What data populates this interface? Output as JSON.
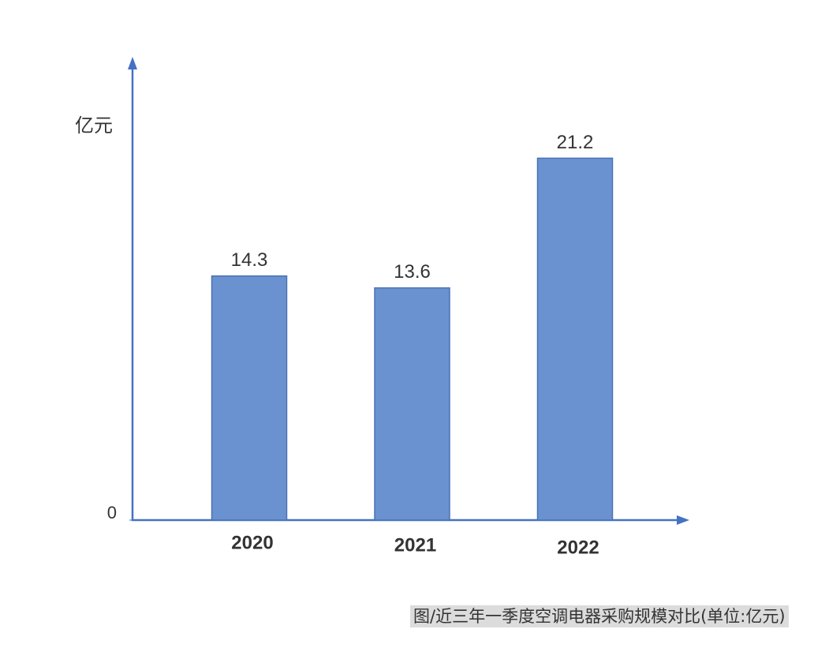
{
  "chart_data": {
    "type": "bar",
    "caption": "图/近三年一季度空调电器采购规模对比(单位:亿元)",
    "y_label": "亿元",
    "categories": [
      "2020",
      "2021",
      "2022"
    ],
    "values": [
      14.3,
      13.6,
      21.2
    ],
    "color": "#6a92d0",
    "ylim": [
      0,
      27
    ],
    "yticks": [
      0
    ]
  }
}
